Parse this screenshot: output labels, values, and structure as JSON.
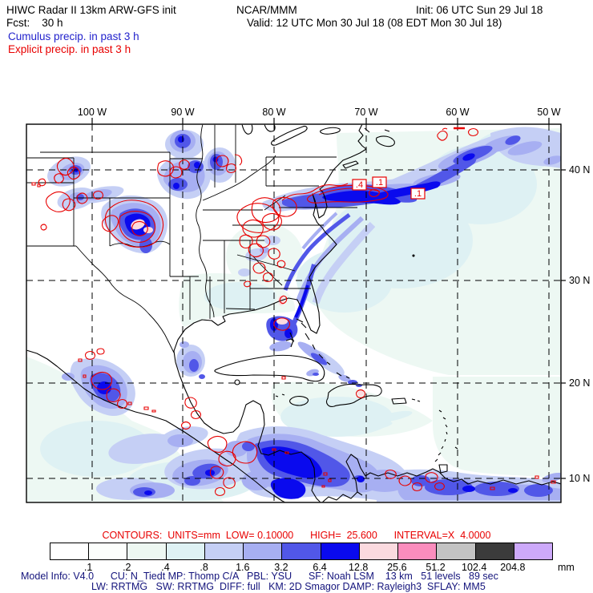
{
  "header": {
    "title": "HIWC Radar II 13km ARW-GFS init",
    "org": "NCAR/MMM",
    "init": "Init: 06 UTC Sun 29 Jul 18",
    "fcst": "Fcst:    30 h",
    "valid": "Valid: 12 UTC Mon 30 Jul 18 (08 EDT Mon 30 Jul 18)",
    "legend_cumulus": "Cumulus precip. in past 3 h",
    "legend_explicit": "Explicit precip. in past 3 h"
  },
  "map": {
    "top_axis": [
      "100 W",
      "90 W",
      "80 W",
      "70 W",
      "60 W",
      "50 W"
    ],
    "right_axis": [
      "40 N",
      "30 N",
      "20 N",
      "10 N"
    ],
    "contour_labels": [
      ".4",
      ".1",
      ".1"
    ]
  },
  "contours_info": "CONTOURS:  UNITS=mm  LOW= 0.10000      HIGH=  25.600      INTERVAL=X  4.0000",
  "colorbar": {
    "labels": [
      ".1",
      ".2",
      ".4",
      ".8",
      "1.6",
      "3.2",
      "6.4",
      "12.8",
      "25.6",
      "51.2",
      "102.4",
      "204.8"
    ],
    "unit": "mm",
    "cells": [
      "#ffffff",
      "#fcfefc",
      "#edf8f2",
      "#def2f4",
      "#c5cff5",
      "#a7aff2",
      "#5157e8",
      "#0a0aee",
      "#fbdadf",
      "#fb8dbd",
      "#c3c3c3",
      "#3b3b3b",
      "#cda9fa"
    ]
  },
  "model_info": {
    "line1": "Model Info: V4.0      CU: N_Tiedt MP: Thomp C/A   PBL: YSU      SF: Noah LSM    13 km   51 levels   89 sec",
    "line2": "LW: RRTMG   SW: RRTMG  DIFF: full   KM: 2D Smagor DAMP: Rayleigh3  SFLAY: MM5"
  },
  "colors": {
    "cumulus_blue": "#2222cc",
    "explicit_red": "#e80000",
    "model_info_navy": "#14147c",
    "precip_pale": "#edf8f3",
    "precip_light": "#c5cff5",
    "precip_medium": "#5157e8",
    "precip_heavy": "#0a0aee",
    "precip_extreme_pink": "#fbdadf"
  }
}
